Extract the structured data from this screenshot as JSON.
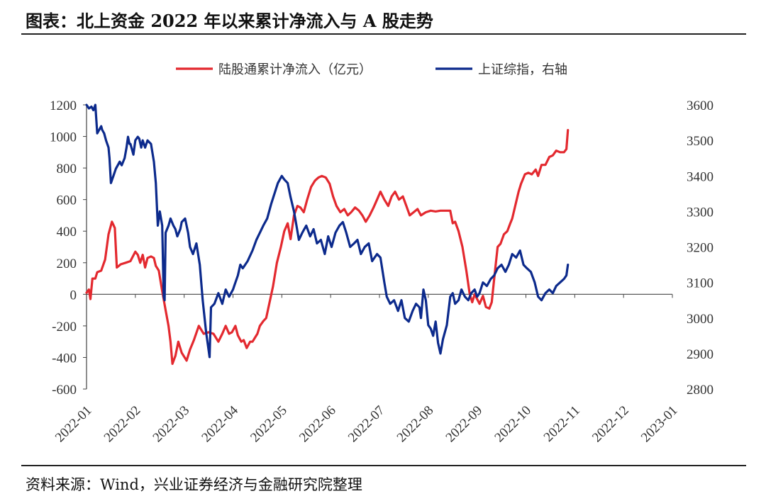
{
  "title": "图表：北上资金 2022 年以来累计净流入与 A 股走势",
  "source": "资料来源：Wind，兴业证券经济与金融研究院整理",
  "chart_data": {
    "type": "line",
    "legend": [
      {
        "name": "陆股通累计净流入（亿元）",
        "color": "#e3292f"
      },
      {
        "name": "上证综指，右轴",
        "color": "#0c2a8c"
      }
    ],
    "x_categories": [
      "2022-01",
      "2022-02",
      "2022-03",
      "2022-04",
      "2022-05",
      "2022-06",
      "2022-07",
      "2022-08",
      "2022-09",
      "2022-10",
      "2022-11",
      "2022-12",
      "2023-01"
    ],
    "left_axis": {
      "min": -600,
      "max": 1200,
      "ticks": [
        "1200",
        "1000",
        "800",
        "600",
        "400",
        "200",
        "0",
        "-200",
        "-400",
        "-600"
      ]
    },
    "right_axis": {
      "min": 2800,
      "max": 3600,
      "ticks": [
        "3600",
        "3500",
        "3400",
        "3300",
        "3200",
        "3100",
        "3000",
        "2900",
        "2800"
      ]
    },
    "series": [
      {
        "name": "陆股通累计净流入（亿元）",
        "axis": "left",
        "color": "#e3292f",
        "points": [
          [
            0.0,
            10
          ],
          [
            0.05,
            30
          ],
          [
            0.08,
            -30
          ],
          [
            0.12,
            100
          ],
          [
            0.18,
            100
          ],
          [
            0.22,
            140
          ],
          [
            0.3,
            150
          ],
          [
            0.38,
            220
          ],
          [
            0.45,
            380
          ],
          [
            0.52,
            460
          ],
          [
            0.55,
            440
          ],
          [
            0.58,
            420
          ],
          [
            0.62,
            170
          ],
          [
            0.7,
            190
          ],
          [
            0.8,
            200
          ],
          [
            0.9,
            210
          ],
          [
            1.0,
            270
          ],
          [
            1.05,
            250
          ],
          [
            1.1,
            200
          ],
          [
            1.15,
            250
          ],
          [
            1.2,
            170
          ],
          [
            1.25,
            230
          ],
          [
            1.32,
            240
          ],
          [
            1.38,
            230
          ],
          [
            1.42,
            180
          ],
          [
            1.48,
            150
          ],
          [
            1.55,
            20
          ],
          [
            1.62,
            -100
          ],
          [
            1.68,
            -200
          ],
          [
            1.72,
            -300
          ],
          [
            1.76,
            -440
          ],
          [
            1.82,
            -390
          ],
          [
            1.88,
            -300
          ],
          [
            1.95,
            -370
          ],
          [
            2.05,
            -420
          ],
          [
            2.12,
            -350
          ],
          [
            2.2,
            -290
          ],
          [
            2.3,
            -200
          ],
          [
            2.4,
            -250
          ],
          [
            2.5,
            -240
          ],
          [
            2.6,
            -250
          ],
          [
            2.7,
            -300
          ],
          [
            2.78,
            -250
          ],
          [
            2.85,
            -200
          ],
          [
            2.92,
            -250
          ],
          [
            2.98,
            -240
          ],
          [
            3.05,
            -200
          ],
          [
            3.1,
            -260
          ],
          [
            3.17,
            -300
          ],
          [
            3.22,
            -290
          ],
          [
            3.28,
            -340
          ],
          [
            3.35,
            -300
          ],
          [
            3.4,
            -300
          ],
          [
            3.5,
            -250
          ],
          [
            3.55,
            -200
          ],
          [
            3.62,
            -170
          ],
          [
            3.68,
            -150
          ],
          [
            3.75,
            -50
          ],
          [
            3.82,
            50
          ],
          [
            3.9,
            200
          ],
          [
            3.98,
            300
          ],
          [
            4.05,
            400
          ],
          [
            4.12,
            450
          ],
          [
            4.18,
            350
          ],
          [
            4.25,
            500
          ],
          [
            4.32,
            560
          ],
          [
            4.38,
            550
          ],
          [
            4.45,
            520
          ],
          [
            4.52,
            600
          ],
          [
            4.6,
            680
          ],
          [
            4.68,
            720
          ],
          [
            4.75,
            740
          ],
          [
            4.82,
            750
          ],
          [
            4.9,
            740
          ],
          [
            4.98,
            700
          ],
          [
            5.05,
            620
          ],
          [
            5.12,
            560
          ],
          [
            5.2,
            520
          ],
          [
            5.28,
            540
          ],
          [
            5.35,
            500
          ],
          [
            5.42,
            520
          ],
          [
            5.5,
            550
          ],
          [
            5.58,
            530
          ],
          [
            5.65,
            500
          ],
          [
            5.72,
            460
          ],
          [
            5.8,
            500
          ],
          [
            5.88,
            550
          ],
          [
            5.95,
            600
          ],
          [
            6.02,
            650
          ],
          [
            6.1,
            600
          ],
          [
            6.18,
            560
          ],
          [
            6.25,
            620
          ],
          [
            6.32,
            650
          ],
          [
            6.4,
            600
          ],
          [
            6.48,
            620
          ],
          [
            6.55,
            560
          ],
          [
            6.62,
            500
          ],
          [
            6.7,
            520
          ],
          [
            6.78,
            540
          ],
          [
            6.85,
            500
          ],
          [
            6.95,
            520
          ],
          [
            7.05,
            530
          ],
          [
            7.15,
            525
          ],
          [
            7.25,
            530
          ],
          [
            7.35,
            530
          ],
          [
            7.45,
            530
          ],
          [
            7.5,
            450
          ],
          [
            7.55,
            460
          ],
          [
            7.62,
            400
          ],
          [
            7.7,
            300
          ],
          [
            7.78,
            150
          ],
          [
            7.85,
            0
          ],
          [
            7.9,
            -50
          ],
          [
            7.95,
            0
          ],
          [
            8.0,
            -30
          ],
          [
            8.05,
            -60
          ],
          [
            8.12,
            -10
          ],
          [
            8.18,
            -80
          ],
          [
            8.25,
            -90
          ],
          [
            8.3,
            -50
          ],
          [
            8.35,
            100
          ],
          [
            8.42,
            300
          ],
          [
            8.48,
            320
          ],
          [
            8.55,
            380
          ],
          [
            8.62,
            400
          ],
          [
            8.68,
            450
          ],
          [
            8.72,
            480
          ],
          [
            8.78,
            560
          ],
          [
            8.85,
            650
          ],
          [
            8.9,
            700
          ],
          [
            8.98,
            760
          ],
          [
            9.05,
            770
          ],
          [
            9.12,
            760
          ],
          [
            9.2,
            790
          ],
          [
            9.25,
            750
          ],
          [
            9.32,
            820
          ],
          [
            9.4,
            820
          ],
          [
            9.48,
            870
          ],
          [
            9.55,
            880
          ],
          [
            9.62,
            910
          ],
          [
            9.7,
            900
          ],
          [
            9.78,
            900
          ],
          [
            9.83,
            920
          ],
          [
            9.86,
            1040
          ]
        ]
      },
      {
        "name": "上证综指，右轴",
        "axis": "right",
        "color": "#0c2a8c",
        "points": [
          [
            0.0,
            3600
          ],
          [
            0.05,
            3590
          ],
          [
            0.1,
            3595
          ],
          [
            0.14,
            3585
          ],
          [
            0.18,
            3600
          ],
          [
            0.22,
            3520
          ],
          [
            0.26,
            3530
          ],
          [
            0.3,
            3540
          ],
          [
            0.32,
            3530
          ],
          [
            0.36,
            3520
          ],
          [
            0.4,
            3500
          ],
          [
            0.45,
            3480
          ],
          [
            0.47,
            3450
          ],
          [
            0.5,
            3380
          ],
          [
            0.55,
            3400
          ],
          [
            0.6,
            3420
          ],
          [
            0.68,
            3440
          ],
          [
            0.72,
            3430
          ],
          [
            0.78,
            3450
          ],
          [
            0.82,
            3480
          ],
          [
            0.85,
            3510
          ],
          [
            0.88,
            3490
          ],
          [
            0.9,
            3490
          ],
          [
            0.96,
            3460
          ],
          [
            1.0,
            3500
          ],
          [
            1.05,
            3510
          ],
          [
            1.08,
            3505
          ],
          [
            1.12,
            3480
          ],
          [
            1.15,
            3500
          ],
          [
            1.2,
            3480
          ],
          [
            1.25,
            3500
          ],
          [
            1.32,
            3490
          ],
          [
            1.38,
            3440
          ],
          [
            1.42,
            3380
          ],
          [
            1.46,
            3260
          ],
          [
            1.5,
            3300
          ],
          [
            1.55,
            3260
          ],
          [
            1.58,
            3060
          ],
          [
            1.6,
            3050
          ],
          [
            1.62,
            3240
          ],
          [
            1.68,
            3260
          ],
          [
            1.72,
            3280
          ],
          [
            1.78,
            3260
          ],
          [
            1.82,
            3250
          ],
          [
            1.86,
            3230
          ],
          [
            1.92,
            3250
          ],
          [
            1.95,
            3270
          ],
          [
            2.02,
            3280
          ],
          [
            2.08,
            3240
          ],
          [
            2.12,
            3200
          ],
          [
            2.18,
            3180
          ],
          [
            2.25,
            3210
          ],
          [
            2.32,
            3150
          ],
          [
            2.38,
            3050
          ],
          [
            2.45,
            2960
          ],
          [
            2.52,
            2890
          ],
          [
            2.55,
            3030
          ],
          [
            2.62,
            3040
          ],
          [
            2.7,
            3070
          ],
          [
            2.78,
            3040
          ],
          [
            2.85,
            3080
          ],
          [
            2.92,
            3060
          ],
          [
            3.0,
            3080
          ],
          [
            3.05,
            3100
          ],
          [
            3.1,
            3120
          ],
          [
            3.15,
            3150
          ],
          [
            3.2,
            3140
          ],
          [
            3.3,
            3160
          ],
          [
            3.4,
            3190
          ],
          [
            3.48,
            3220
          ],
          [
            3.55,
            3240
          ],
          [
            3.62,
            3260
          ],
          [
            3.7,
            3280
          ],
          [
            3.78,
            3320
          ],
          [
            3.85,
            3350
          ],
          [
            3.92,
            3380
          ],
          [
            4.0,
            3400
          ],
          [
            4.05,
            3390
          ],
          [
            4.12,
            3380
          ],
          [
            4.18,
            3340
          ],
          [
            4.25,
            3300
          ],
          [
            4.3,
            3260
          ],
          [
            4.35,
            3220
          ],
          [
            4.42,
            3240
          ],
          [
            4.5,
            3260
          ],
          [
            4.58,
            3230
          ],
          [
            4.65,
            3250
          ],
          [
            4.72,
            3210
          ],
          [
            4.8,
            3220
          ],
          [
            4.88,
            3180
          ],
          [
            4.95,
            3230
          ],
          [
            5.02,
            3200
          ],
          [
            5.1,
            3240
          ],
          [
            5.18,
            3260
          ],
          [
            5.25,
            3270
          ],
          [
            5.32,
            3240
          ],
          [
            5.4,
            3200
          ],
          [
            5.48,
            3210
          ],
          [
            5.55,
            3220
          ],
          [
            5.62,
            3180
          ],
          [
            5.7,
            3200
          ],
          [
            5.78,
            3210
          ],
          [
            5.85,
            3160
          ],
          [
            5.9,
            3170
          ],
          [
            5.95,
            3180
          ],
          [
            6.02,
            3170
          ],
          [
            6.1,
            3100
          ],
          [
            6.15,
            3060
          ],
          [
            6.22,
            3040
          ],
          [
            6.3,
            3050
          ],
          [
            6.38,
            3020
          ],
          [
            6.45,
            3050
          ],
          [
            6.52,
            3000
          ],
          [
            6.6,
            2990
          ],
          [
            6.68,
            3020
          ],
          [
            6.75,
            3040
          ],
          [
            6.82,
            3030
          ],
          [
            6.85,
            3000
          ],
          [
            6.9,
            3080
          ],
          [
            6.95,
            3050
          ],
          [
            7.0,
            2980
          ],
          [
            7.05,
            2970
          ],
          [
            7.1,
            2950
          ],
          [
            7.15,
            2990
          ],
          [
            7.2,
            2930
          ],
          [
            7.25,
            2900
          ],
          [
            7.3,
            2940
          ],
          [
            7.38,
            2980
          ],
          [
            7.45,
            3060
          ],
          [
            7.5,
            3070
          ],
          [
            7.55,
            3040
          ],
          [
            7.62,
            3050
          ],
          [
            7.68,
            3080
          ],
          [
            7.75,
            3060
          ],
          [
            7.82,
            3050
          ],
          [
            7.88,
            3070
          ],
          [
            7.95,
            3080
          ],
          [
            8.0,
            3060
          ],
          [
            8.05,
            3070
          ],
          [
            8.12,
            3100
          ],
          [
            8.2,
            3090
          ],
          [
            8.28,
            3110
          ],
          [
            8.35,
            3120
          ],
          [
            8.42,
            3140
          ],
          [
            8.5,
            3150
          ],
          [
            8.58,
            3130
          ],
          [
            8.65,
            3150
          ],
          [
            8.72,
            3180
          ],
          [
            8.8,
            3170
          ],
          [
            8.88,
            3190
          ],
          [
            8.95,
            3150
          ],
          [
            9.02,
            3140
          ],
          [
            9.1,
            3130
          ],
          [
            9.18,
            3100
          ],
          [
            9.25,
            3060
          ],
          [
            9.32,
            3050
          ],
          [
            9.4,
            3070
          ],
          [
            9.48,
            3080
          ],
          [
            9.55,
            3070
          ],
          [
            9.62,
            3090
          ],
          [
            9.7,
            3100
          ],
          [
            9.78,
            3110
          ],
          [
            9.83,
            3120
          ],
          [
            9.86,
            3150
          ]
        ]
      }
    ]
  }
}
